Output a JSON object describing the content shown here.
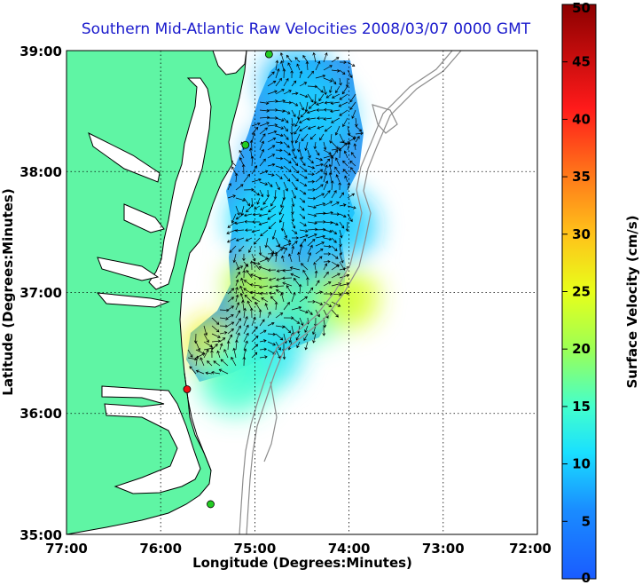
{
  "title": "Southern Mid-Atlantic Raw Velocities 2008/03/07 0000 GMT",
  "x_axis": {
    "label": "Longitude (Degrees:Minutes)",
    "ticks": [
      "77:00",
      "76:00",
      "75:00",
      "74:00",
      "73:00",
      "72:00"
    ]
  },
  "y_axis": {
    "label": "Latitude (Degrees:Minutes)",
    "ticks": [
      "39:00",
      "38:00",
      "37:00",
      "36:00",
      "35:00"
    ]
  },
  "colorbar": {
    "label": "Surface Velocity (cm/s)",
    "ticks": [
      "0",
      "5",
      "10",
      "15",
      "20",
      "25",
      "30",
      "35",
      "40",
      "45",
      "50"
    ],
    "min": 0,
    "max": 50
  },
  "colors": {
    "land": "#5ff5a4",
    "title": "#1a1acc",
    "coast": "#000000",
    "bathymetry": "#8c8c8c",
    "grid": "#000000"
  },
  "map_extent": {
    "lon_west": -77,
    "lon_east": -72,
    "lat_south": 35,
    "lat_north": 39
  },
  "stations": [
    {
      "lon": -74.85,
      "lat": 38.97,
      "color": "#22cc22"
    },
    {
      "lon": -75.1,
      "lat": 38.22,
      "color": "#22cc22"
    },
    {
      "lon": -75.72,
      "lat": 36.2,
      "color": "#ee1111"
    },
    {
      "lon": -75.47,
      "lat": 35.25,
      "color": "#22cc22"
    }
  ],
  "velocity_blobs": [
    {
      "lon": -74.55,
      "lat": 38.72,
      "speed": 9
    },
    {
      "lon": -74.35,
      "lat": 38.45,
      "speed": 10
    },
    {
      "lon": -74.7,
      "lat": 38.1,
      "speed": 8
    },
    {
      "lon": -74.5,
      "lat": 37.75,
      "speed": 9
    },
    {
      "lon": -74.9,
      "lat": 37.6,
      "speed": 11
    },
    {
      "lon": -74.1,
      "lat": 37.55,
      "speed": 10
    },
    {
      "lon": -75.0,
      "lat": 37.05,
      "speed": 22
    },
    {
      "lon": -74.4,
      "lat": 36.9,
      "speed": 16
    },
    {
      "lon": -74.0,
      "lat": 36.95,
      "speed": 24
    },
    {
      "lon": -75.45,
      "lat": 36.55,
      "speed": 26
    },
    {
      "lon": -74.9,
      "lat": 36.5,
      "speed": 12
    },
    {
      "lon": -75.2,
      "lat": 36.3,
      "speed": 15
    }
  ]
}
